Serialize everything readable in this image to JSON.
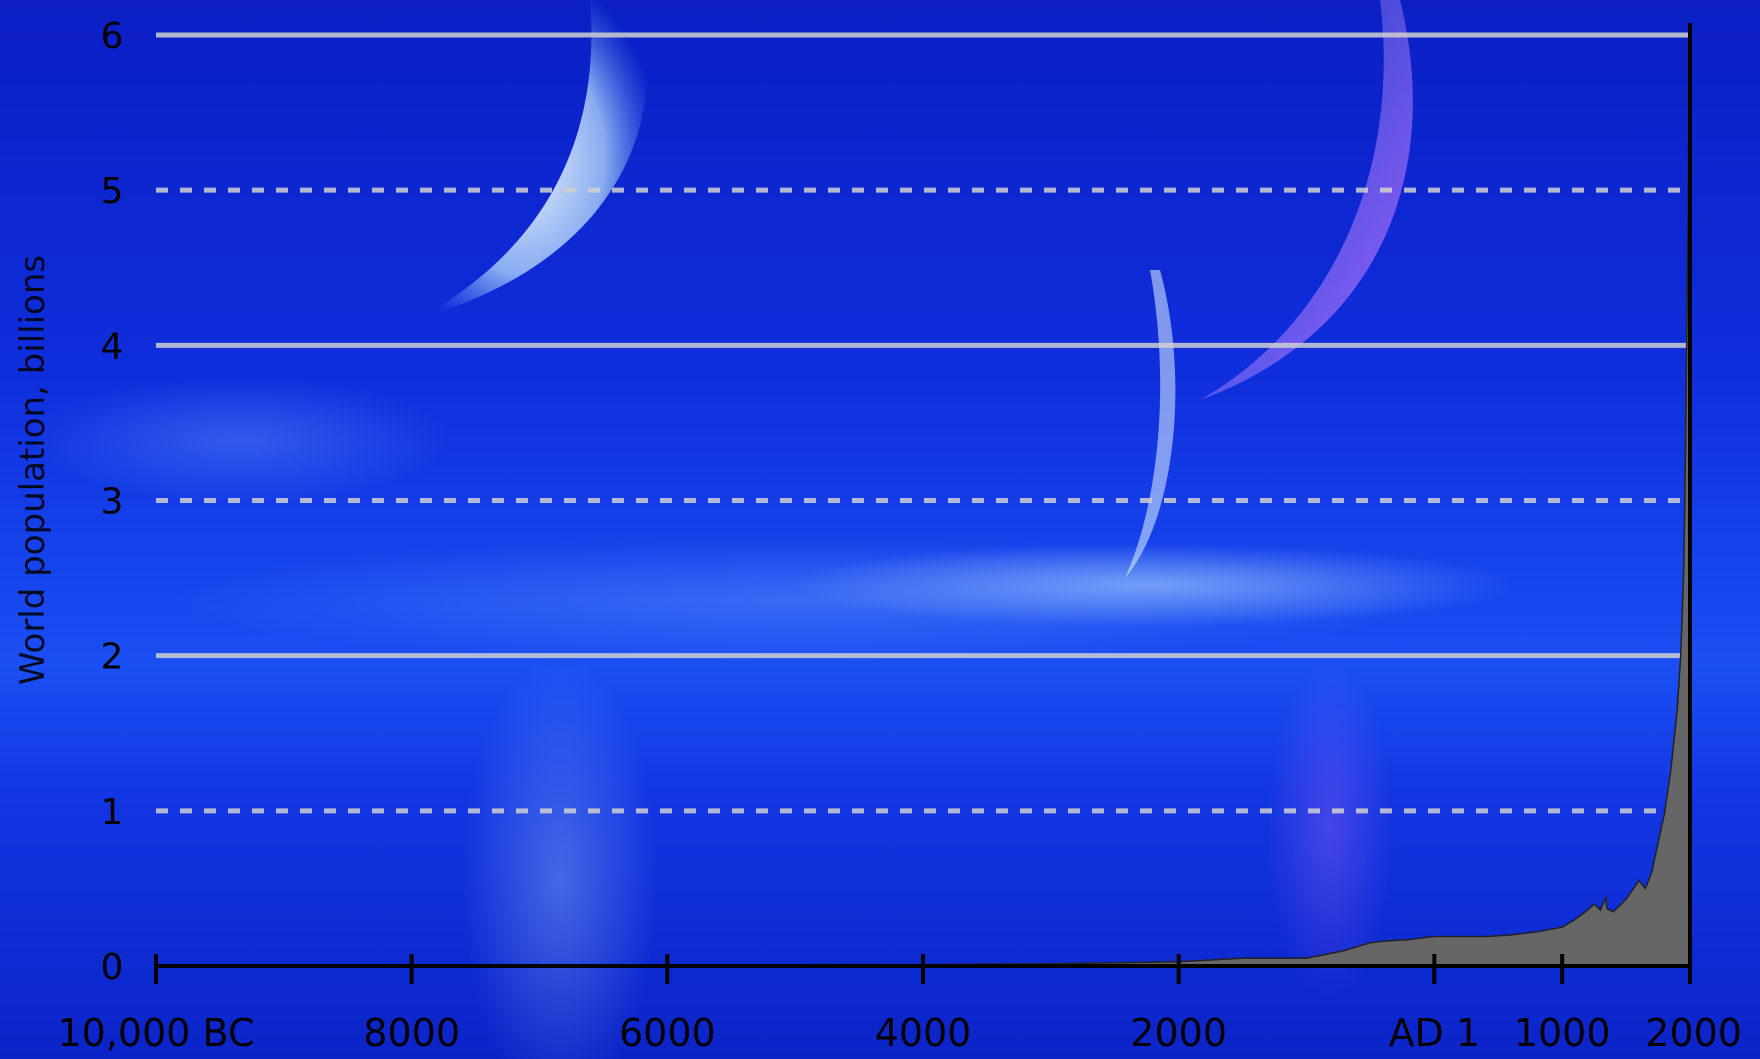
{
  "chart_data": {
    "type": "area",
    "title": "",
    "ylabel": "World population, billions",
    "xlabel": "",
    "xlim": [
      -10000,
      2000
    ],
    "ylim": [
      0,
      6
    ],
    "x_ticks": [
      {
        "value": -10000,
        "label": "10,000 BC"
      },
      {
        "value": -8000,
        "label": "8000"
      },
      {
        "value": -6000,
        "label": "6000"
      },
      {
        "value": -4000,
        "label": "4000"
      },
      {
        "value": -2000,
        "label": "2000"
      },
      {
        "value": 0,
        "label": "AD 1"
      },
      {
        "value": 1000,
        "label": "1000"
      },
      {
        "value": 2000,
        "label": "2000"
      }
    ],
    "y_ticks": [
      {
        "value": 0,
        "label": "0"
      },
      {
        "value": 1,
        "label": "1"
      },
      {
        "value": 2,
        "label": "2"
      },
      {
        "value": 3,
        "label": "3"
      },
      {
        "value": 4,
        "label": "4"
      },
      {
        "value": 5,
        "label": "5"
      },
      {
        "value": 6,
        "label": "6"
      }
    ],
    "gridlines": [
      {
        "value": 1,
        "style": "dashed"
      },
      {
        "value": 2,
        "style": "solid"
      },
      {
        "value": 3,
        "style": "dashed"
      },
      {
        "value": 4,
        "style": "solid"
      },
      {
        "value": 5,
        "style": "dashed"
      },
      {
        "value": 6,
        "style": "solid"
      }
    ],
    "area_color": "#666666",
    "series": [
      {
        "x": [
          -10000,
          -8000,
          -6000,
          -4000,
          -3000,
          -2000,
          -1500,
          -1000,
          -700,
          -500,
          -400,
          -200,
          0,
          200,
          400,
          600,
          800,
          1000,
          1100,
          1200,
          1250,
          1300,
          1340,
          1350,
          1400,
          1500,
          1600,
          1650,
          1700,
          1750,
          1800,
          1850,
          1900,
          1927,
          1950,
          1960,
          1970,
          1980,
          1990,
          2000
        ],
        "values": [
          0.004,
          0.005,
          0.007,
          0.009,
          0.014,
          0.027,
          0.05,
          0.05,
          0.1,
          0.15,
          0.16,
          0.17,
          0.19,
          0.19,
          0.19,
          0.2,
          0.22,
          0.25,
          0.3,
          0.36,
          0.4,
          0.36,
          0.44,
          0.37,
          0.35,
          0.43,
          0.55,
          0.5,
          0.6,
          0.79,
          0.98,
          1.26,
          1.65,
          2.0,
          2.52,
          3.02,
          3.7,
          4.43,
          5.3,
          6.07
        ]
      }
    ]
  }
}
